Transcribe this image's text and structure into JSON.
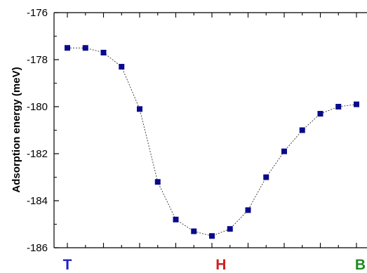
{
  "chart_data": {
    "type": "scatter",
    "ylabel": "Adsorption energy (meV)",
    "ylim": [
      -186,
      -176
    ],
    "yticks": [
      "-176",
      "-178",
      "-180",
      "-182",
      "-184",
      "-186"
    ],
    "xlim": [
      0,
      16
    ],
    "grid": false,
    "line_style": "dotted connecting line",
    "position_labels": [
      {
        "text": "T",
        "x": 0,
        "color": "#1f1fc8"
      },
      {
        "text": "H",
        "x": 8.5,
        "color": "#d41f1f"
      },
      {
        "text": "B",
        "x": 16,
        "color": "#1f8a1f"
      }
    ],
    "series": [
      {
        "color": "#0a0a8c",
        "x": [
          0,
          1,
          2,
          3,
          4,
          5,
          6,
          7,
          8,
          9,
          10,
          11,
          12,
          13,
          14,
          15,
          16
        ],
        "y": [
          -177.5,
          -177.5,
          -177.7,
          -178.3,
          -180.1,
          -183.2,
          -184.8,
          -185.3,
          -185.5,
          -185.2,
          -184.4,
          -183.0,
          -181.9,
          -181.0,
          -180.3,
          -180.0,
          -179.9
        ]
      }
    ]
  }
}
